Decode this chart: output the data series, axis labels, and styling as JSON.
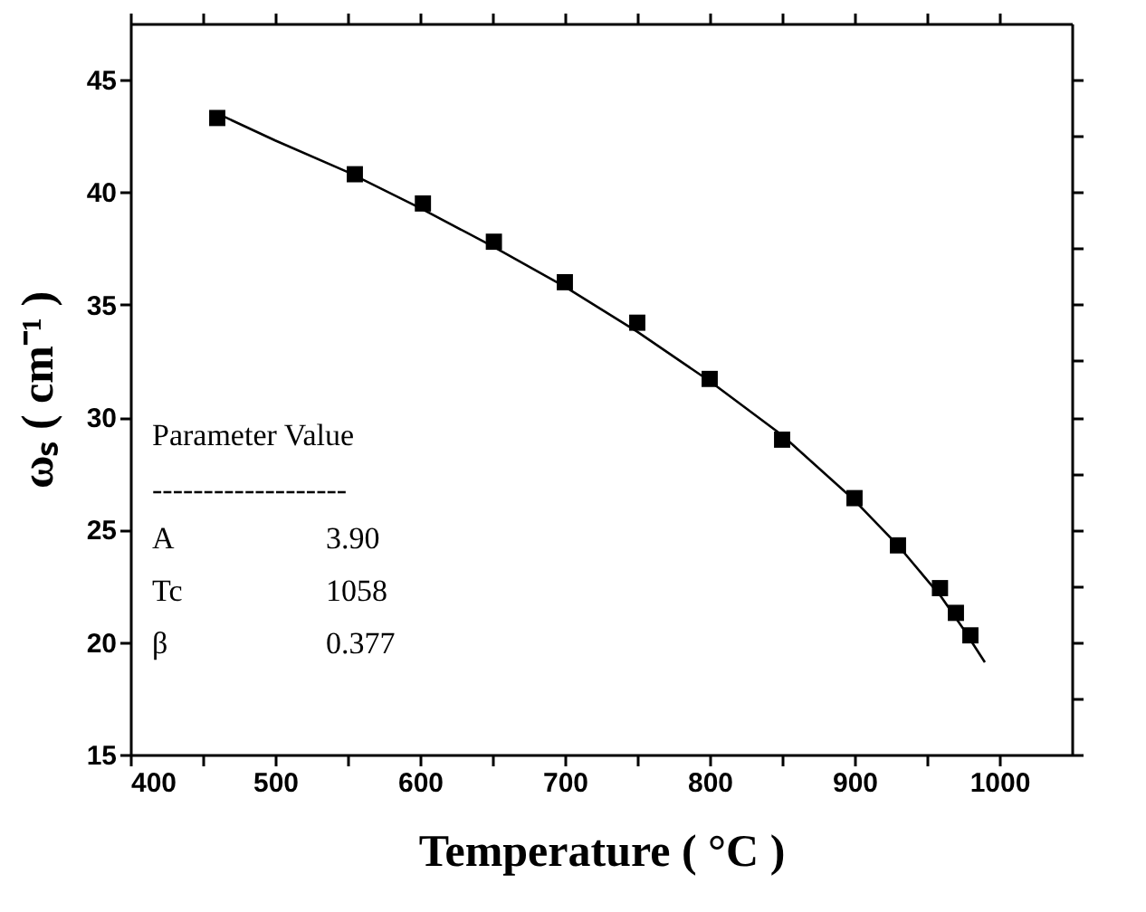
{
  "chart_data": {
    "type": "scatter",
    "xlabel": "Temperature ( °C )",
    "ylabel": "ωₛ ( cm⁻¹ )",
    "xlim": [
      400,
      1050
    ],
    "xticks": [
      400,
      {
        "value": 450,
        "label": null
      },
      500,
      {
        "value": 550,
        "label": null
      },
      600,
      {
        "value": 650,
        "label": null
      },
      700,
      {
        "value": 750,
        "label": null
      },
      800,
      {
        "value": 850,
        "label": null
      },
      900,
      {
        "value": 950,
        "label": null
      },
      1000
    ],
    "ylim": [
      15,
      47.5
    ],
    "yticks": [
      15,
      {
        "value": 17.5,
        "label": null
      },
      20,
      {
        "value": 22.5,
        "label": null
      },
      25,
      {
        "value": 27.5,
        "label": null
      },
      30,
      {
        "value": 32.5,
        "label": null
      },
      35,
      {
        "value": 37.5,
        "label": null
      },
      40,
      {
        "value": 42.5,
        "label": null
      },
      45
    ],
    "marker": "square",
    "grid": false,
    "series": [
      {
        "type": "scatter",
        "color": "#000000",
        "x": [
          460,
          555,
          602,
          651,
          700,
          750,
          800,
          850,
          900,
          930,
          959,
          970,
          980
        ],
        "values": [
          43.3,
          40.8,
          39.5,
          37.8,
          36.0,
          34.2,
          31.7,
          29.0,
          26.4,
          24.3,
          22.4,
          21.3,
          20.3
        ]
      },
      {
        "type": "line",
        "color": "#000000",
        "line_style": "solid",
        "marker": "none",
        "x": [
          460,
          500,
          550,
          600,
          650,
          700,
          750,
          800,
          850,
          900,
          930,
          960,
          975,
          990
        ],
        "values": [
          43.5,
          42.3,
          40.9,
          39.3,
          37.6,
          35.8,
          33.8,
          31.6,
          29.2,
          26.3,
          24.3,
          22.0,
          20.6,
          19.1
        ]
      }
    ],
    "annotations": [
      "Parameter   Value",
      "-------------------",
      "A",
      "3.90",
      "Tc",
      "1058",
      "β",
      "0.377"
    ]
  }
}
